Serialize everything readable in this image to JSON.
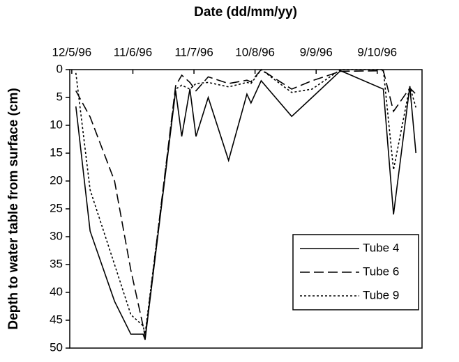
{
  "chart_data": {
    "type": "line",
    "x_axis_title": "Date (dd/mm/yy)",
    "y_axis_title": "Depth to water table from surface (cm)",
    "x_axis_position": "top",
    "y_inverted": true,
    "x": [
      "1996-05-14",
      "1996-05-21",
      "1996-06-02",
      "1996-06-10",
      "1996-06-16",
      "1996-06-17",
      "1996-07-02",
      "1996-07-05",
      "1996-07-09",
      "1996-07-12",
      "1996-07-18",
      "1996-07-28",
      "1996-08-06",
      "1996-08-08",
      "1996-08-13",
      "1996-08-28",
      "1996-09-07",
      "1996-09-21",
      "1996-10-12",
      "1996-10-17",
      "1996-10-25",
      "1996-10-28"
    ],
    "xlim": [
      "1996-05-11",
      "1996-10-31"
    ],
    "xticks": [
      {
        "value": "1996-05-12",
        "label": "12/5/96"
      },
      {
        "value": "1996-06-11",
        "label": "11/6/96"
      },
      {
        "value": "1996-07-11",
        "label": "11/7/96"
      },
      {
        "value": "1996-08-10",
        "label": "10/8/96"
      },
      {
        "value": "1996-09-09",
        "label": "9/9/96"
      },
      {
        "value": "1996-10-09",
        "label": "9/10/96"
      }
    ],
    "ylim": [
      0,
      50
    ],
    "yticks": [
      0,
      5,
      10,
      15,
      20,
      25,
      30,
      35,
      40,
      45,
      50
    ],
    "legend_position": "lower right",
    "series": [
      {
        "name": "Tube 4",
        "color": "#000000",
        "line_style": "solid",
        "values": [
          6.6,
          29,
          41.6,
          47.5,
          47.5,
          48.5,
          3.8,
          12,
          3.5,
          12,
          5,
          16.3,
          4.4,
          6,
          2,
          8.4,
          5,
          0.2,
          3.5,
          26,
          3,
          15
        ]
      },
      {
        "name": "Tube 6",
        "color": "#000000",
        "line_style": "dashed",
        "values": [
          3.8,
          8.5,
          20,
          36,
          46,
          48,
          2.9,
          1,
          2.3,
          3.8,
          1.3,
          2.5,
          1.9,
          2.2,
          0,
          3.5,
          2,
          0.3,
          0.2,
          7.5,
          3.3,
          4.4
        ]
      },
      {
        "name": "Tube 9",
        "color": "#000000",
        "line_style": "dotted",
        "values": [
          0.6,
          21.6,
          35,
          44,
          46,
          47.5,
          3.5,
          2.8,
          3.5,
          2.5,
          2.3,
          3.1,
          2.3,
          2.5,
          0,
          4.1,
          3.5,
          0,
          0,
          18,
          3,
          6.8
        ]
      }
    ]
  }
}
